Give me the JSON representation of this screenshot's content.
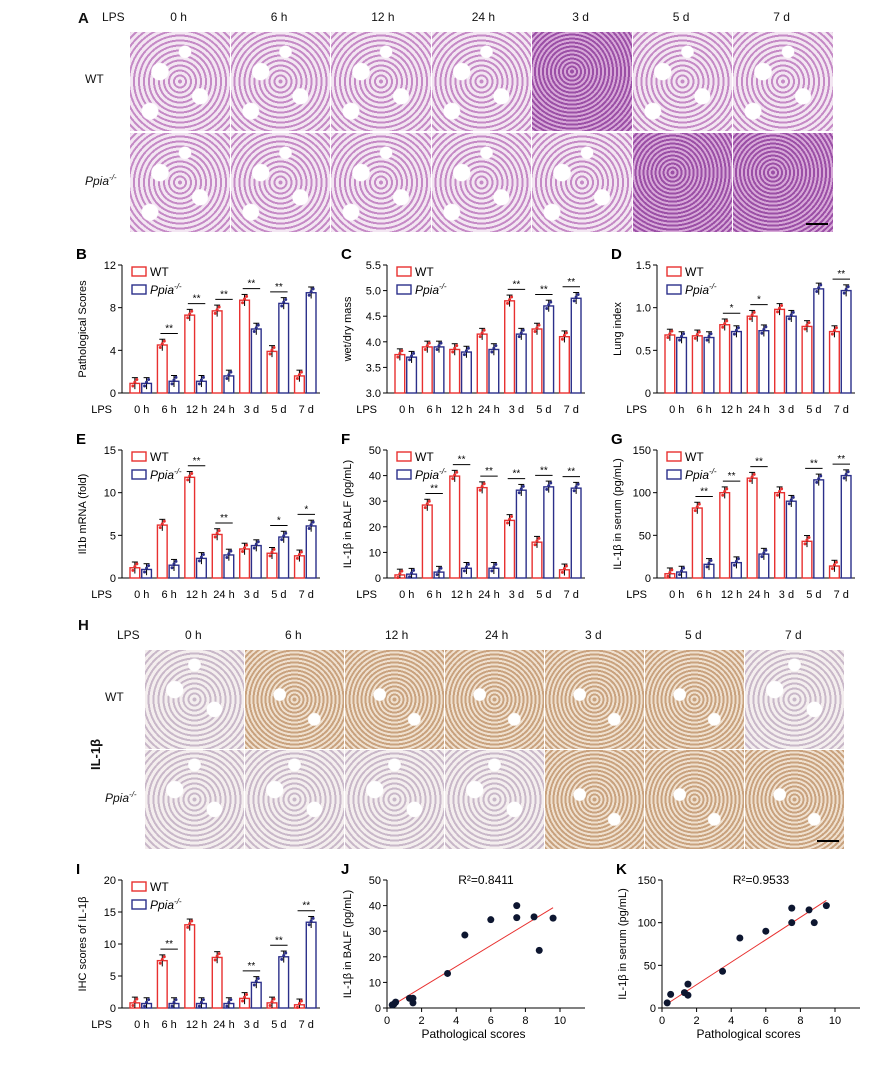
{
  "panel_A": {
    "label": "A",
    "lps": "LPS",
    "times": [
      "0 h",
      "6 h",
      "12 h",
      "24 h",
      "3 d",
      "5 d",
      "7 d"
    ],
    "rows": [
      "WT",
      "Ppia-/-"
    ]
  },
  "panel_H": {
    "label": "H",
    "lps": "LPS",
    "times": [
      "0 h",
      "6 h",
      "12 h",
      "24 h",
      "3 d",
      "5 d",
      "7 d"
    ],
    "rows": [
      "WT",
      "Ppia-/-"
    ],
    "marker": "IL-1β"
  },
  "colors": {
    "wt": "#e8302f",
    "ko": "#2b2f8a",
    "fit_line": "#e8302f",
    "points": "#0d1630"
  },
  "chart_data": [
    {
      "id": "B",
      "type": "bar",
      "label": "B",
      "ylabel": "Pathological Scores",
      "xprefix": "LPS",
      "categories": [
        "0 h",
        "6 h",
        "12 h",
        "24 h",
        "3 d",
        "5 d",
        "7 d"
      ],
      "ylim": [
        0,
        12
      ],
      "yticks": [
        "0",
        "4",
        "8",
        "12"
      ],
      "legend": [
        "WT",
        "Ppia-/-"
      ],
      "series": [
        {
          "name": "WT",
          "values": [
            0.9,
            4.5,
            7.3,
            7.7,
            8.7,
            3.9,
            1.6
          ]
        },
        {
          "name": "Ppia-/-",
          "values": [
            0.9,
            1.1,
            1.1,
            1.6,
            6.0,
            8.4,
            9.4
          ]
        }
      ],
      "significance": [
        "",
        "**",
        "**",
        "**",
        "**",
        "**",
        ""
      ]
    },
    {
      "id": "C",
      "type": "bar",
      "label": "C",
      "ylabel": "wet/dry mass",
      "xprefix": "LPS",
      "categories": [
        "0 h",
        "6 h",
        "12 h",
        "24 h",
        "3 d",
        "5 d",
        "7 d"
      ],
      "ylim": [
        3.0,
        5.5
      ],
      "yticks": [
        "3.0",
        "3.5",
        "4.0",
        "4.5",
        "5.0",
        "5.5"
      ],
      "legend": [
        "WT",
        "Ppia-/-"
      ],
      "series": [
        {
          "name": "WT",
          "values": [
            3.75,
            3.9,
            3.85,
            4.15,
            4.8,
            4.25,
            4.1
          ]
        },
        {
          "name": "Ppia-/-",
          "values": [
            3.7,
            3.9,
            3.8,
            3.85,
            4.15,
            4.7,
            4.85
          ]
        }
      ],
      "significance": [
        "",
        "",
        "",
        "",
        "**",
        "**",
        "**"
      ]
    },
    {
      "id": "D",
      "type": "bar",
      "label": "D",
      "ylabel": "Lung index",
      "xprefix": "LPS",
      "categories": [
        "0 h",
        "6 h",
        "12 h",
        "24 h",
        "3 d",
        "5 d",
        "7 d"
      ],
      "ylim": [
        0,
        1.5
      ],
      "yticks": [
        "0",
        "0.5",
        "1.0",
        "1.5"
      ],
      "legend": [
        "WT",
        "Ppia-/-"
      ],
      "series": [
        {
          "name": "WT",
          "values": [
            0.68,
            0.67,
            0.8,
            0.9,
            0.98,
            0.78,
            0.72
          ]
        },
        {
          "name": "Ppia-/-",
          "values": [
            0.65,
            0.65,
            0.72,
            0.73,
            0.9,
            1.22,
            1.2
          ]
        }
      ],
      "significance": [
        "",
        "",
        "*",
        "*",
        "",
        "",
        "**"
      ]
    },
    {
      "id": "E",
      "type": "bar",
      "label": "E",
      "ylabel": "Il1b mRNA (fold)",
      "xprefix": "LPS",
      "categories": [
        "0 h",
        "6 h",
        "12 h",
        "24 h",
        "3 d",
        "5 d",
        "7 d"
      ],
      "ylim": [
        0,
        15
      ],
      "yticks": [
        "0",
        "5",
        "10",
        "15"
      ],
      "legend": [
        "WT",
        "Ppia-/-"
      ],
      "series": [
        {
          "name": "WT",
          "values": [
            1.2,
            6.2,
            11.8,
            5.1,
            3.4,
            2.9,
            2.6
          ]
        },
        {
          "name": "Ppia-/-",
          "values": [
            1.0,
            1.5,
            2.3,
            2.7,
            3.8,
            4.8,
            6.1
          ]
        }
      ],
      "significance": [
        "",
        "",
        "**",
        "**",
        "",
        "*",
        "*"
      ]
    },
    {
      "id": "F",
      "type": "bar",
      "label": "F",
      "ylabel": "IL-1β in BALF (pg/mL)",
      "xprefix": "LPS",
      "categories": [
        "0 h",
        "6 h",
        "12 h",
        "24 h",
        "3 d",
        "5 d",
        "7 d"
      ],
      "ylim": [
        0,
        50
      ],
      "yticks": [
        "0",
        "10",
        "20",
        "30",
        "40",
        "50"
      ],
      "legend": [
        "WT",
        "Ppia-/-"
      ],
      "series": [
        {
          "name": "WT",
          "values": [
            1.2,
            28.5,
            39.8,
            35.3,
            22.5,
            14.0,
            3.2
          ]
        },
        {
          "name": "Ppia-/-",
          "values": [
            1.5,
            2.3,
            3.8,
            3.8,
            34.3,
            35.6,
            35.1
          ]
        }
      ],
      "significance": [
        "",
        "**",
        "**",
        "**",
        "**",
        "**",
        "**"
      ]
    },
    {
      "id": "G",
      "type": "bar",
      "label": "G",
      "ylabel": "IL-1β in serum (pg/mL)",
      "xprefix": "LPS",
      "categories": [
        "0 h",
        "6 h",
        "12 h",
        "24 h",
        "3 d",
        "5 d",
        "7 d"
      ],
      "ylim": [
        0,
        150
      ],
      "yticks": [
        "0",
        "50",
        "100",
        "150"
      ],
      "legend": [
        "WT",
        "Ppia-/-"
      ],
      "series": [
        {
          "name": "WT",
          "values": [
            5,
            82,
            100,
            117,
            100,
            43,
            14
          ]
        },
        {
          "name": "Ppia-/-",
          "values": [
            7,
            16,
            18,
            28,
            90,
            115,
            120
          ]
        }
      ],
      "significance": [
        "",
        "**",
        "**",
        "**",
        "",
        "**",
        "**"
      ]
    },
    {
      "id": "I",
      "type": "bar",
      "label": "I",
      "ylabel": "IHC scores of IL-1β",
      "xprefix": "LPS",
      "categories": [
        "0 h",
        "6 h",
        "12 h",
        "24 h",
        "3 d",
        "5 d",
        "7 d"
      ],
      "ylim": [
        0,
        20
      ],
      "yticks": [
        "0",
        "5",
        "10",
        "15",
        "20"
      ],
      "legend": [
        "WT",
        "Ppia-/-"
      ],
      "series": [
        {
          "name": "WT",
          "values": [
            0.8,
            7.4,
            13.0,
            7.9,
            1.5,
            0.8,
            0.5
          ]
        },
        {
          "name": "Ppia-/-",
          "values": [
            0.7,
            0.7,
            0.7,
            0.7,
            4.0,
            8.0,
            13.4
          ]
        }
      ],
      "significance": [
        "",
        "**",
        "",
        "",
        "**",
        "**",
        "**"
      ]
    },
    {
      "id": "J",
      "type": "scatter",
      "label": "J",
      "xlabel": "Pathological scores",
      "ylabel": "IL-1β in BALF (pg/mL)",
      "annotation": "R²=0.8411",
      "xlim": [
        0,
        10
      ],
      "ylim": [
        0,
        50
      ],
      "xticks": [
        "0",
        "2",
        "4",
        "6",
        "8",
        "10"
      ],
      "yticks": [
        "0",
        "10",
        "20",
        "30",
        "40",
        "50"
      ],
      "points": [
        [
          0.3,
          1.2
        ],
        [
          0.4,
          1.5
        ],
        [
          0.5,
          2.3
        ],
        [
          1.3,
          3.8
        ],
        [
          1.5,
          3.8
        ],
        [
          1.5,
          2.0
        ],
        [
          3.5,
          13.5
        ],
        [
          4.5,
          28.5
        ],
        [
          6.0,
          34.5
        ],
        [
          7.5,
          40.0
        ],
        [
          7.5,
          35.3
        ],
        [
          8.5,
          35.6
        ],
        [
          8.8,
          22.5
        ],
        [
          9.6,
          35.1
        ]
      ],
      "fit": [
        [
          0.3,
          1.0
        ],
        [
          9.6,
          39.2
        ]
      ]
    },
    {
      "id": "K",
      "type": "scatter",
      "label": "K",
      "xlabel": "Pathological scores",
      "ylabel": "IL-1β in serum (pg/mL)",
      "annotation": "R²=0.9533",
      "xlim": [
        0,
        10
      ],
      "ylim": [
        0,
        150
      ],
      "xticks": [
        "0",
        "2",
        "4",
        "6",
        "8",
        "10"
      ],
      "yticks": [
        "0",
        "50",
        "100",
        "150"
      ],
      "points": [
        [
          0.3,
          6
        ],
        [
          0.5,
          16
        ],
        [
          1.3,
          18
        ],
        [
          1.5,
          28
        ],
        [
          1.5,
          15
        ],
        [
          3.5,
          43
        ],
        [
          4.5,
          82
        ],
        [
          6.0,
          90
        ],
        [
          7.5,
          117
        ],
        [
          7.5,
          100
        ],
        [
          8.5,
          115
        ],
        [
          8.8,
          100
        ],
        [
          9.5,
          120
        ]
      ],
      "fit": [
        [
          0.3,
          5
        ],
        [
          9.5,
          126
        ]
      ]
    }
  ]
}
